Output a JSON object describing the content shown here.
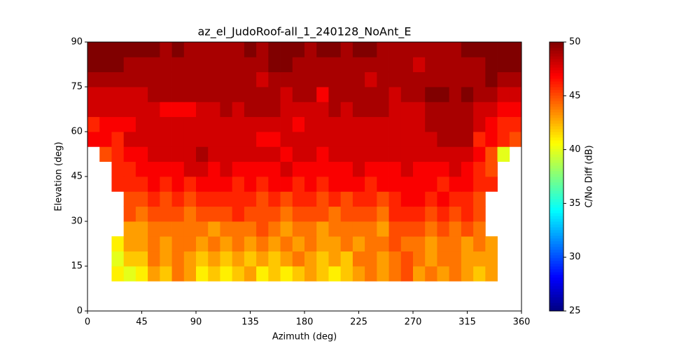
{
  "chart_data": {
    "type": "heatmap",
    "title": "az_el_JudoRoof-all_1_240128_NoAnt_E",
    "x_label": "Azimuth (deg)",
    "y_label": "Elevation (deg)",
    "x_bins": [
      0,
      10,
      20,
      30,
      40,
      50,
      60,
      70,
      80,
      90,
      100,
      110,
      120,
      130,
      140,
      150,
      160,
      170,
      180,
      190,
      200,
      210,
      220,
      230,
      240,
      250,
      260,
      270,
      280,
      290,
      300,
      310,
      320,
      330,
      340,
      350,
      360
    ],
    "y_bins": [
      0,
      5,
      10,
      15,
      20,
      25,
      30,
      35,
      40,
      45,
      50,
      55,
      60,
      65,
      70,
      75,
      80,
      85,
      90
    ],
    "xlim": [
      0,
      360
    ],
    "xticks": [
      0,
      45,
      90,
      135,
      180,
      225,
      270,
      315,
      360
    ],
    "ylim": [
      0,
      90
    ],
    "yticks": [
      0,
      15,
      30,
      45,
      60,
      75,
      90
    ],
    "colormap": "jet",
    "colorbar": {
      "label": "C/No Diff (dB)",
      "lim": [
        25,
        50
      ],
      "ticks": [
        25,
        30,
        35,
        40,
        45,
        50
      ]
    },
    "values": [
      [
        null,
        null,
        null,
        null,
        null,
        null,
        null,
        null,
        null,
        null,
        null,
        null,
        null,
        null,
        null,
        null,
        null,
        null,
        null,
        null,
        null,
        null,
        null,
        null,
        null,
        null,
        null,
        null,
        null,
        null,
        null,
        null,
        null,
        null,
        null,
        null
      ],
      [
        null,
        null,
        null,
        null,
        null,
        null,
        null,
        null,
        null,
        null,
        null,
        null,
        null,
        null,
        null,
        null,
        null,
        null,
        null,
        null,
        null,
        null,
        null,
        null,
        null,
        null,
        null,
        null,
        null,
        null,
        null,
        null,
        null,
        null,
        null,
        null
      ],
      [
        null,
        null,
        41,
        40,
        41,
        43,
        42,
        44,
        43,
        41,
        42,
        41,
        42,
        43,
        41,
        42,
        41,
        42,
        43,
        42,
        41,
        42,
        43,
        44,
        43,
        44,
        45,
        43,
        44,
        43,
        44,
        43,
        42,
        43,
        null,
        null
      ],
      [
        null,
        null,
        40,
        42,
        42,
        44,
        43,
        44,
        43,
        42,
        43,
        42,
        43,
        42,
        43,
        42,
        43,
        44,
        43,
        42,
        43,
        42,
        44,
        44,
        43,
        44,
        45,
        44,
        43,
        44,
        44,
        43,
        43,
        43,
        null,
        null
      ],
      [
        null,
        null,
        41,
        43,
        43,
        44,
        43,
        44,
        44,
        43,
        44,
        43,
        44,
        43,
        44,
        43,
        44,
        43,
        44,
        43,
        43,
        44,
        43,
        44,
        44,
        45,
        44,
        44,
        43,
        44,
        44,
        43,
        44,
        43,
        null,
        null
      ],
      [
        null,
        null,
        null,
        43,
        43,
        44,
        44,
        44,
        44,
        44,
        43,
        44,
        44,
        44,
        45,
        44,
        43,
        44,
        44,
        43,
        44,
        44,
        44,
        44,
        43,
        45,
        45,
        45,
        44,
        45,
        44,
        45,
        44,
        null,
        null,
        null
      ],
      [
        null,
        null,
        null,
        45,
        44,
        45,
        45,
        45,
        44,
        45,
        45,
        45,
        46,
        45,
        45,
        45,
        44,
        45,
        45,
        45,
        44,
        45,
        45,
        45,
        44,
        46,
        46,
        46,
        45,
        46,
        45,
        46,
        45,
        null,
        null,
        null
      ],
      [
        null,
        null,
        null,
        45,
        45,
        46,
        45,
        46,
        45,
        46,
        46,
        46,
        46,
        46,
        45,
        46,
        45,
        46,
        46,
        45,
        46,
        45,
        46,
        46,
        45,
        46,
        47,
        47,
        46,
        47,
        46,
        46,
        45,
        null,
        null,
        null
      ],
      [
        null,
        null,
        46,
        46,
        46,
        47,
        46,
        47,
        46,
        47,
        47,
        47,
        46,
        47,
        46,
        47,
        47,
        46,
        47,
        46,
        47,
        47,
        47,
        46,
        47,
        47,
        47,
        47,
        47,
        46,
        47,
        47,
        46,
        46,
        null,
        null
      ],
      [
        null,
        null,
        46,
        46,
        47,
        47,
        47,
        47,
        48,
        48,
        47,
        48,
        47,
        47,
        47,
        47,
        48,
        47,
        47,
        47,
        47,
        47,
        48,
        47,
        47,
        47,
        48,
        47,
        47,
        47,
        48,
        47,
        46,
        45,
        null,
        null
      ],
      [
        null,
        45,
        46,
        47,
        47,
        48,
        48,
        48,
        48,
        49,
        48,
        48,
        48,
        48,
        48,
        48,
        47,
        48,
        48,
        47,
        48,
        48,
        48,
        48,
        48,
        48,
        48,
        48,
        48,
        48,
        48,
        48,
        47,
        45,
        40,
        null
      ],
      [
        47,
        47,
        46,
        48,
        48,
        48,
        48,
        48,
        48,
        48,
        48,
        48,
        48,
        48,
        47,
        47,
        48,
        48,
        48,
        48,
        48,
        48,
        48,
        48,
        48,
        48,
        48,
        48,
        48,
        49,
        49,
        49,
        46,
        47,
        46,
        45
      ],
      [
        46,
        47,
        47,
        47,
        48,
        48,
        48,
        48,
        48,
        48,
        48,
        48,
        48,
        48,
        48,
        48,
        48,
        47,
        48,
        48,
        48,
        48,
        48,
        48,
        48,
        48,
        48,
        48,
        49,
        49,
        49,
        49,
        48,
        47,
        46,
        46
      ],
      [
        48,
        48,
        48,
        48,
        48,
        48,
        47,
        47,
        47,
        48,
        48,
        49,
        48,
        49,
        49,
        49,
        48,
        48,
        48,
        48,
        49,
        48,
        49,
        49,
        49,
        48,
        48,
        48,
        49,
        49,
        49,
        49,
        48,
        48,
        47,
        47
      ],
      [
        48,
        48,
        48,
        48,
        48,
        49,
        49,
        49,
        49,
        49,
        49,
        49,
        49,
        49,
        49,
        49,
        48,
        49,
        49,
        47,
        49,
        49,
        49,
        49,
        49,
        48,
        49,
        49,
        50,
        50,
        49,
        50,
        49,
        49,
        48,
        48
      ],
      [
        49,
        49,
        49,
        49,
        49,
        49,
        49,
        49,
        49,
        49,
        49,
        49,
        49,
        49,
        48,
        49,
        49,
        49,
        49,
        49,
        49,
        49,
        49,
        48,
        49,
        49,
        49,
        49,
        49,
        49,
        49,
        49,
        49,
        50,
        49,
        49
      ],
      [
        50,
        50,
        50,
        49,
        49,
        49,
        49,
        49,
        49,
        49,
        49,
        49,
        49,
        49,
        49,
        50,
        50,
        49,
        49,
        49,
        49,
        49,
        49,
        49,
        49,
        49,
        49,
        48,
        49,
        49,
        49,
        49,
        49,
        50,
        50,
        50
      ],
      [
        50,
        50,
        50,
        50,
        50,
        50,
        49,
        50,
        49,
        49,
        49,
        49,
        49,
        50,
        49,
        50,
        50,
        50,
        49,
        50,
        50,
        49,
        50,
        50,
        49,
        49,
        49,
        49,
        49,
        49,
        49,
        50,
        50,
        50,
        50,
        50
      ]
    ]
  }
}
